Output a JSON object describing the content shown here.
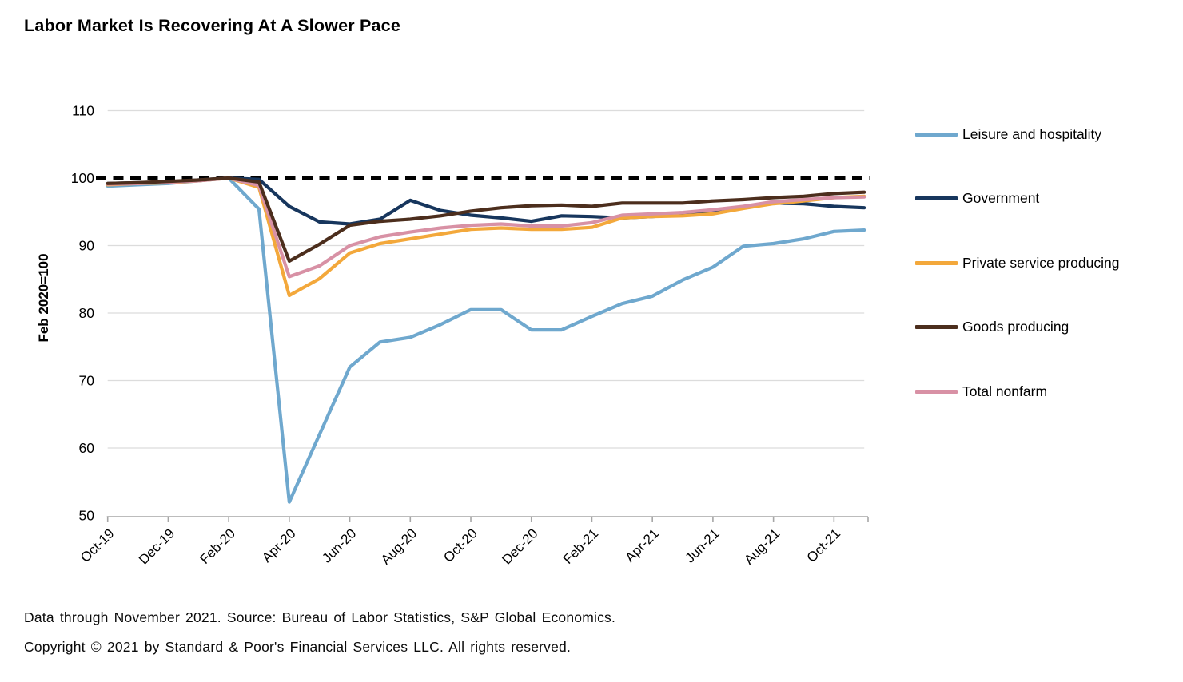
{
  "page": {
    "title": "Labor Market Is Recovering At A Slower Pace",
    "footer_line1": "Data through November 2021. Source: Bureau of Labor Statistics, S&P Global Economics.",
    "footer_line2": "Copyright © 2021 by Standard & Poor's Financial Services LLC. All rights reserved."
  },
  "chart_data": {
    "type": "line",
    "title": "Labor Market Is Recovering At A Slower Pace",
    "xlabel": "",
    "ylabel": "Feb 2020=100",
    "ylim": [
      50,
      110
    ],
    "yticks": [
      110,
      100,
      90,
      80,
      70,
      60,
      50
    ],
    "grid": true,
    "legend_position": "right",
    "reference_line": {
      "value": 100,
      "style": "dashed",
      "color": "#000000"
    },
    "months": [
      "Oct-19",
      "Nov-19",
      "Dec-19",
      "Jan-20",
      "Feb-20",
      "Mar-20",
      "Apr-20",
      "May-20",
      "Jun-20",
      "Jul-20",
      "Aug-20",
      "Sep-20",
      "Oct-20",
      "Nov-20",
      "Dec-20",
      "Jan-21",
      "Feb-21",
      "Mar-21",
      "Apr-21",
      "May-21",
      "Jun-21",
      "Jul-21",
      "Aug-21",
      "Sep-21",
      "Oct-21",
      "Nov-21"
    ],
    "xtick_labels": [
      "Oct-19",
      "Dec-19",
      "Feb-20",
      "Apr-20",
      "Jun-20",
      "Aug-20",
      "Oct-20",
      "Dec-20",
      "Feb-21",
      "Apr-21",
      "Jun-21",
      "Aug-21",
      "Oct-21"
    ],
    "series": [
      {
        "name": "Leisure and hospitality",
        "color": "#6FA8CE",
        "values": [
          98.8,
          99.0,
          99.2,
          99.6,
          100,
          95.4,
          52.0,
          62.0,
          72.0,
          75.7,
          76.4,
          78.3,
          80.5,
          80.5,
          77.5,
          77.5,
          79.5,
          81.4,
          82.5,
          84.9,
          86.8,
          89.9,
          90.3,
          91.0,
          92.1,
          92.3
        ]
      },
      {
        "name": "Government",
        "color": "#17365D",
        "values": [
          99.2,
          99.3,
          99.4,
          99.7,
          100,
          99.8,
          95.8,
          93.5,
          93.2,
          93.9,
          96.7,
          95.2,
          94.5,
          94.1,
          93.6,
          94.4,
          94.3,
          94.1,
          94.3,
          94.6,
          95.0,
          95.6,
          96.3,
          96.2,
          95.8,
          95.6
        ]
      },
      {
        "name": "Private service producing",
        "color": "#F3A83B",
        "values": [
          99.0,
          99.2,
          99.3,
          99.6,
          100,
          98.6,
          82.6,
          85.1,
          88.9,
          90.3,
          91.0,
          91.7,
          92.4,
          92.6,
          92.4,
          92.4,
          92.7,
          94.1,
          94.3,
          94.4,
          94.7,
          95.5,
          96.2,
          96.6,
          97.1,
          97.3
        ]
      },
      {
        "name": "Total nonfarm",
        "color": "#D891A5",
        "values": [
          99.1,
          99.2,
          99.4,
          99.6,
          100,
          98.9,
          85.4,
          87.0,
          90.0,
          91.3,
          92.0,
          92.6,
          93.0,
          93.2,
          92.9,
          92.9,
          93.4,
          94.5,
          94.7,
          94.9,
          95.3,
          95.8,
          96.5,
          96.8,
          97.1,
          97.2
        ]
      },
      {
        "name": "Goods producing",
        "color": "#4C2E1D",
        "values": [
          99.2,
          99.3,
          99.5,
          99.7,
          100,
          99.4,
          87.7,
          90.2,
          93.0,
          93.6,
          93.9,
          94.4,
          95.1,
          95.6,
          95.9,
          96.0,
          95.8,
          96.3,
          96.3,
          96.3,
          96.6,
          96.8,
          97.1,
          97.3,
          97.7,
          97.9
        ]
      }
    ],
    "legend_order": [
      "Leisure and hospitality",
      "Government",
      "Private service producing",
      "Goods producing",
      "Total nonfarm"
    ]
  }
}
